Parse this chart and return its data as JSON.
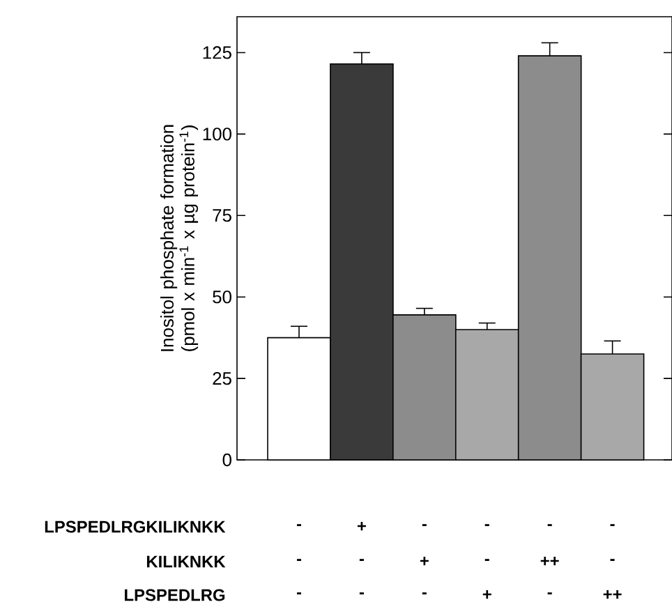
{
  "chart_data": {
    "type": "bar",
    "ylabel": "Inositol phosphate formation (pmol x min$^{-1}$ x µg protein$^{-1}$)",
    "categories": [
      null,
      null,
      null,
      null,
      null,
      null
    ],
    "values": [
      37.5,
      121.5,
      44.5,
      40,
      124,
      32.5
    ],
    "errors": [
      3.5,
      3.5,
      2,
      2,
      4,
      4
    ],
    "colors": [
      "#ffffff",
      "#3a3a3a",
      "#8c8c8c",
      "#a8a8a8",
      "#8c8c8c",
      "#a8a8a8"
    ],
    "ylim": [
      0,
      136
    ],
    "yticks": [
      0,
      25,
      50,
      75,
      100,
      125
    ],
    "annotations": [
      "LPSPEDLRGKILIKNKK",
      "-",
      "+",
      "-",
      "-",
      "-",
      "-",
      "KILIKNKK",
      "-",
      "-",
      "+",
      "-",
      "++",
      "-",
      "LPSPEDLRG",
      "-",
      "-",
      "-",
      "+",
      "-",
      "++"
    ]
  }
}
